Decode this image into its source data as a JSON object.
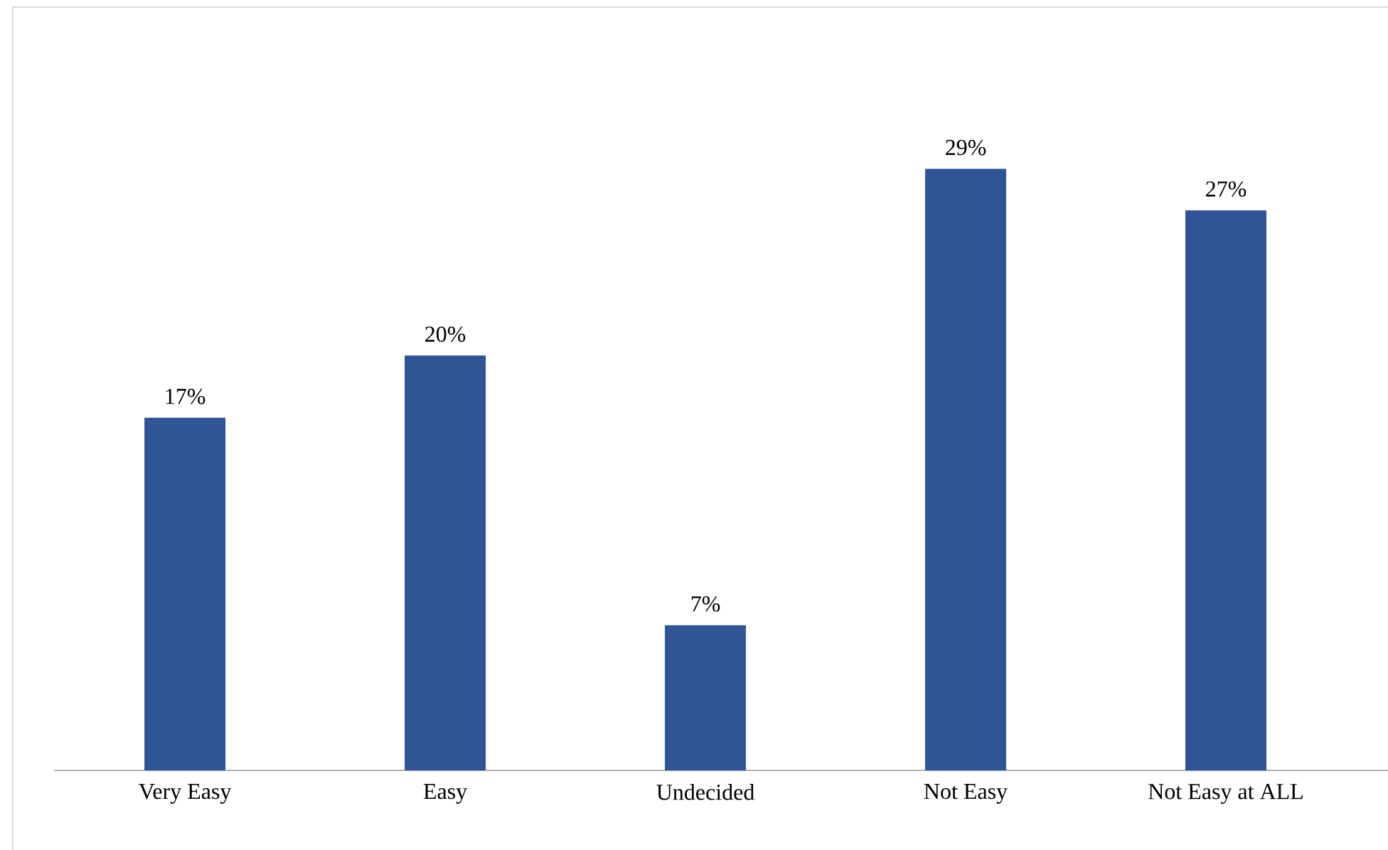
{
  "chart_data": {
    "type": "bar",
    "categories": [
      "Very Easy",
      "Easy",
      "Undecided",
      "Not Easy",
      "Not Easy at ALL"
    ],
    "values": [
      17,
      20,
      7,
      29,
      27
    ],
    "value_labels": [
      "17%",
      "20%",
      "7%",
      "29%",
      "27%"
    ],
    "color": "#2f5597"
  }
}
